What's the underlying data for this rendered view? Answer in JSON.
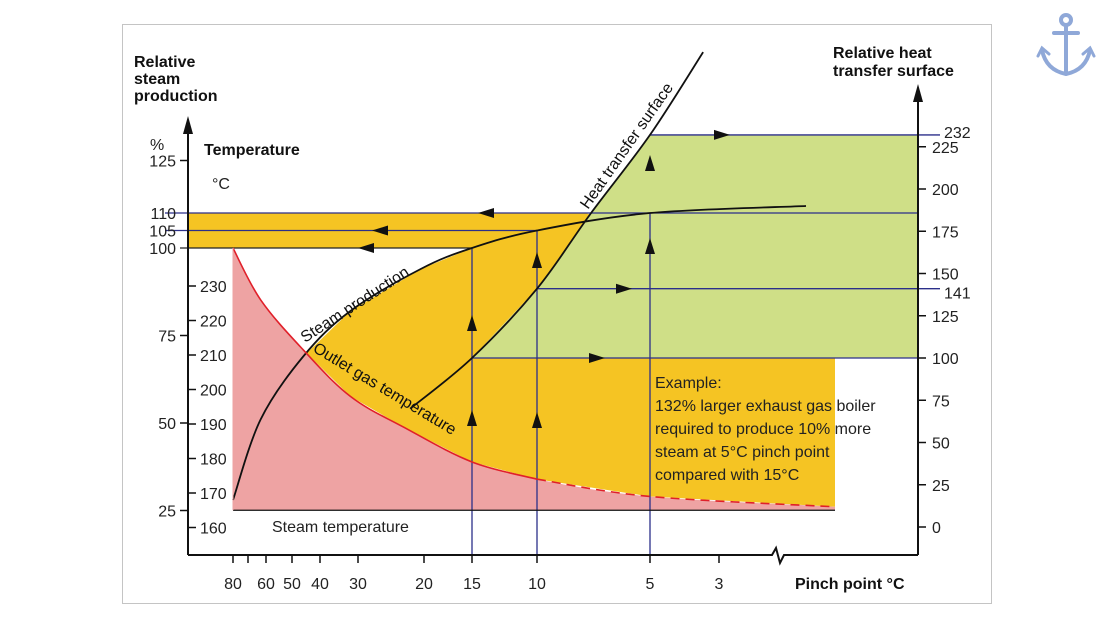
{
  "chart_data": {
    "type": "line",
    "xlabel": "Pinch point °C",
    "x_ticks": [
      "80",
      "60",
      "50",
      "40",
      "30",
      "20",
      "15",
      "10",
      "5",
      "3"
    ],
    "left_axis": {
      "label_lines": [
        "Relative",
        "steam",
        "production"
      ],
      "unit": "%",
      "ticks": [
        25,
        50,
        75,
        100,
        105,
        110,
        125
      ]
    },
    "temperature_axis": {
      "label": "Temperature",
      "unit": "°C",
      "ticks": [
        160,
        170,
        180,
        190,
        200,
        210,
        220,
        230
      ]
    },
    "right_axis": {
      "label_lines": [
        "Relative heat",
        "transfer surface"
      ],
      "ticks": [
        0,
        25,
        50,
        75,
        100,
        125,
        150,
        175,
        200,
        225
      ],
      "marked_values": [
        141,
        232
      ]
    },
    "series": [
      {
        "name": "Steam production",
        "axis": "left",
        "points": [
          [
            80,
            28
          ],
          [
            63,
            51
          ],
          [
            46,
            69
          ],
          [
            32,
            82
          ],
          [
            20.5,
            94
          ],
          [
            15,
            100
          ],
          [
            10,
            105
          ],
          [
            5,
            110
          ],
          [
            1.5,
            112
          ]
        ]
      },
      {
        "name": "Outlet gas temperature",
        "axis": "temperature",
        "points": [
          [
            80,
            241
          ],
          [
            63,
            226
          ],
          [
            46,
            211.5
          ],
          [
            32,
            198
          ],
          [
            23,
            189
          ],
          [
            15,
            179
          ],
          [
            10,
            174
          ],
          [
            5,
            169
          ],
          [
            1,
            166
          ]
        ],
        "dashed_below_pinch": 10
      },
      {
        "name": "Heat transfer surface",
        "axis": "right",
        "points": [
          [
            22.1,
            70
          ],
          [
            15,
            100
          ],
          [
            10,
            141
          ],
          [
            7.65,
            185
          ],
          [
            5,
            232
          ],
          [
            3.46,
            281
          ]
        ]
      },
      {
        "name": "Steam temperature",
        "axis": "temperature",
        "points": [
          [
            80,
            165
          ],
          [
            1,
            165
          ]
        ]
      }
    ],
    "example": {
      "pinch": [
        15,
        10,
        5
      ],
      "steam_production": [
        100,
        105,
        110
      ],
      "heat_transfer_surface": [
        100,
        141,
        232
      ]
    },
    "annotation": [
      "Example:",
      "132% larger exhaust gas boiler",
      "required to produce 10% more",
      "steam at 5°C pinch point",
      "compared with 15°C"
    ],
    "grid": false
  },
  "logo": {
    "icon": "anchor-icon",
    "color": "#8fa8d8"
  },
  "colors": {
    "yellow_region": "#f5c423",
    "green_region": "#cfdf87",
    "pink_region": "#eea3a3",
    "outlet_gas_line": "#e0202a",
    "reference_lines": "#2b2f8a",
    "axis": "#111111"
  }
}
